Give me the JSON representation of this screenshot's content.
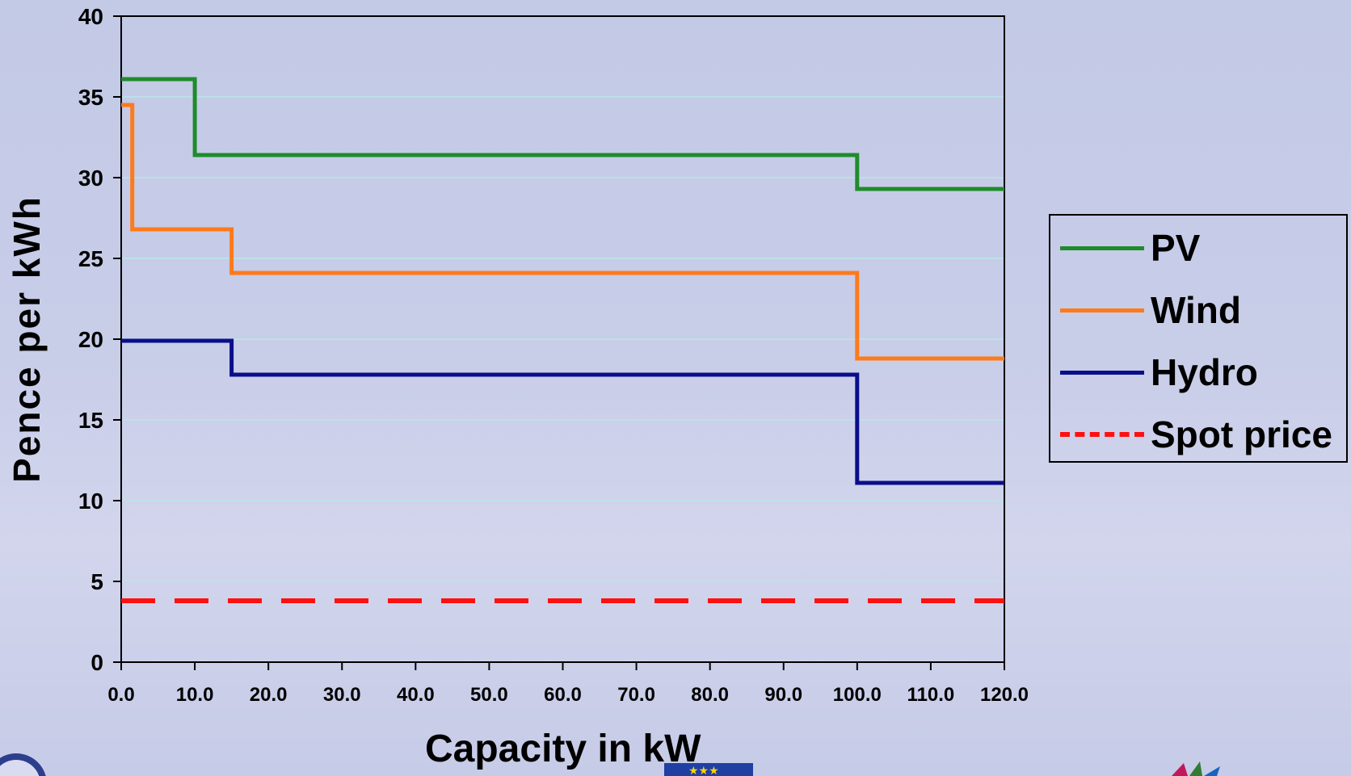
{
  "chart_data": {
    "type": "line",
    "title": "",
    "xlabel": "Capacity in kW",
    "ylabel": "Pence per kWh",
    "xlim": [
      0,
      120
    ],
    "ylim": [
      0,
      40
    ],
    "x_ticks": [
      "0.0",
      "10.0",
      "20.0",
      "30.0",
      "40.0",
      "50.0",
      "60.0",
      "70.0",
      "80.0",
      "90.0",
      "100.0",
      "110.0",
      "120.0"
    ],
    "y_ticks": [
      "0",
      "5",
      "10",
      "15",
      "20",
      "25",
      "30",
      "35",
      "40"
    ],
    "grid": "horizontal",
    "legend_position": "right",
    "series": [
      {
        "name": "PV",
        "color": "#1e8c2a",
        "style": "solid",
        "step": true,
        "x": [
          0,
          10,
          10,
          100,
          100,
          120
        ],
        "y": [
          36.1,
          36.1,
          31.4,
          31.4,
          29.3,
          29.3
        ]
      },
      {
        "name": "Wind",
        "color": "#ff7a1a",
        "style": "solid",
        "step": true,
        "x": [
          0,
          1.5,
          1.5,
          15,
          15,
          100,
          100,
          120
        ],
        "y": [
          34.5,
          34.5,
          26.8,
          26.8,
          24.1,
          24.1,
          18.8,
          18.8
        ]
      },
      {
        "name": "Hydro",
        "color": "#0a0e8a",
        "style": "solid",
        "step": true,
        "x": [
          0,
          15,
          15,
          100,
          100,
          120
        ],
        "y": [
          19.9,
          19.9,
          17.8,
          17.8,
          11.1,
          11.1
        ]
      },
      {
        "name": "Spot price",
        "color": "#ff1010",
        "style": "dashed",
        "step": false,
        "x": [
          0,
          120
        ],
        "y": [
          3.8,
          3.8
        ]
      }
    ]
  }
}
